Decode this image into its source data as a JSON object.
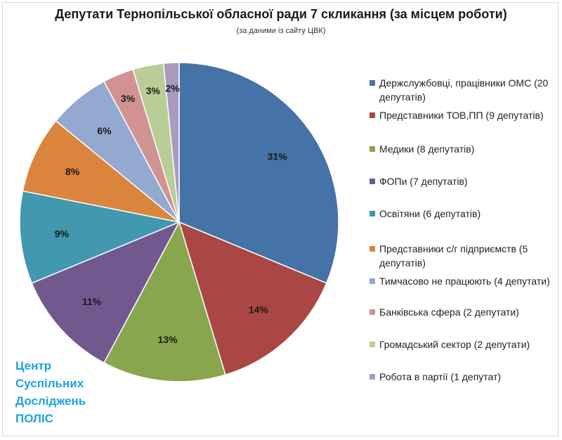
{
  "title": "Депутати Тернопільської обласної ради 7 скликання (за місцем роботи)",
  "subtitle": "(за даними із сайту ЦВК)",
  "brand": {
    "lines": [
      "Центр",
      "Суспільних",
      "Досліджень",
      "ПОЛІС"
    ]
  },
  "chart_data": {
    "type": "pie",
    "title": "Депутати Тернопільської обласної ради 7 скликання (за місцем роботи)",
    "slices": [
      {
        "label": "Держслужбовці, працівники ОМС (20 депутатів)",
        "count": 20,
        "percent_label": "31%",
        "color": "#4572a7"
      },
      {
        "label": "Представники ТОВ,ПП (9 депутатів)",
        "count": 9,
        "percent_label": "14%",
        "color": "#aa4643"
      },
      {
        "label": "Медики (8 депутатів)",
        "count": 8,
        "percent_label": "13%",
        "color": "#89a54e"
      },
      {
        "label": "ФОПи (7 депутатів)",
        "count": 7,
        "percent_label": "11%",
        "color": "#71588f"
      },
      {
        "label": "Освітяни (6 депутатів)",
        "count": 6,
        "percent_label": "9%",
        "color": "#4198af"
      },
      {
        "label": "Представники с/г підприємств (5 депутатів)",
        "count": 5,
        "percent_label": "8%",
        "color": "#db843d"
      },
      {
        "label": "Тимчасово не працюють (4 депутати)",
        "count": 4,
        "percent_label": "6%",
        "color": "#93a9cf"
      },
      {
        "label": "Банківська сфера (2 депутати)",
        "count": 2,
        "percent_label": "3%",
        "color": "#d19392"
      },
      {
        "label": "Громадський сектор (2 депутати)",
        "count": 2,
        "percent_label": "3%",
        "color": "#b9cd96"
      },
      {
        "label": "Робота в партії (1 депутат)",
        "count": 1,
        "percent_label": "2%",
        "color": "#a99bbd"
      }
    ],
    "legend_position": "right"
  }
}
